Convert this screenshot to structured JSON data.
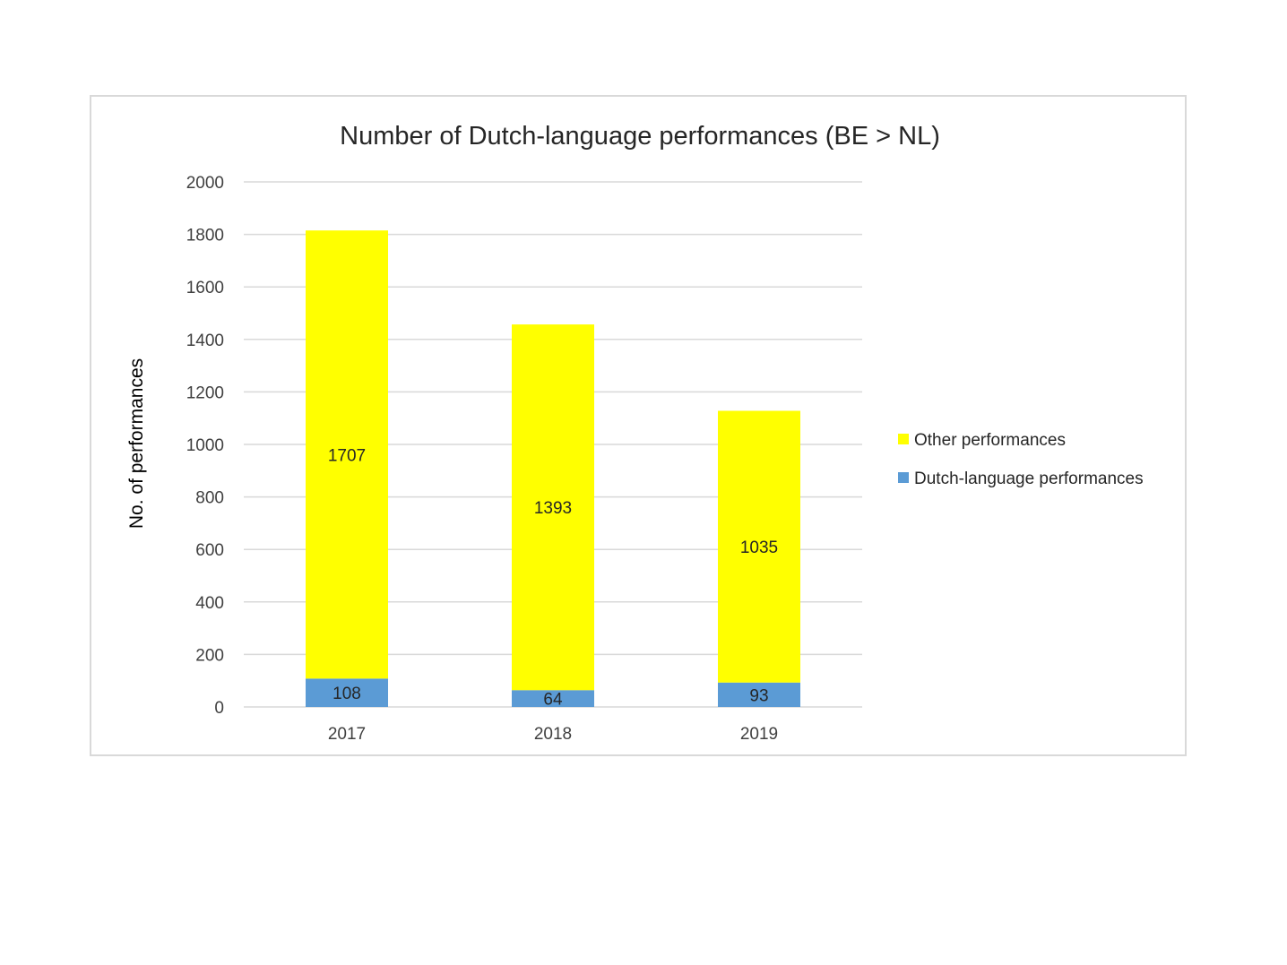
{
  "chart_data": {
    "type": "bar",
    "stacked": true,
    "title": "Number of Dutch-language performances (BE > NL)",
    "xlabel": "",
    "ylabel": "No. of performances",
    "ylim": [
      0,
      2000
    ],
    "yticks": [
      0,
      200,
      400,
      600,
      800,
      1000,
      1200,
      1400,
      1600,
      1800,
      2000
    ],
    "categories": [
      "2017",
      "2018",
      "2019"
    ],
    "series": [
      {
        "name": "Dutch-language performances",
        "values": [
          108,
          64,
          93
        ],
        "color": "#5b9bd5"
      },
      {
        "name": "Other performances",
        "values": [
          1707,
          1393,
          1035
        ],
        "color": "#ffff00"
      }
    ],
    "legend": {
      "position": "right",
      "order": [
        "Other performances",
        "Dutch-language performances"
      ]
    },
    "grid": true,
    "data_labels": true
  }
}
